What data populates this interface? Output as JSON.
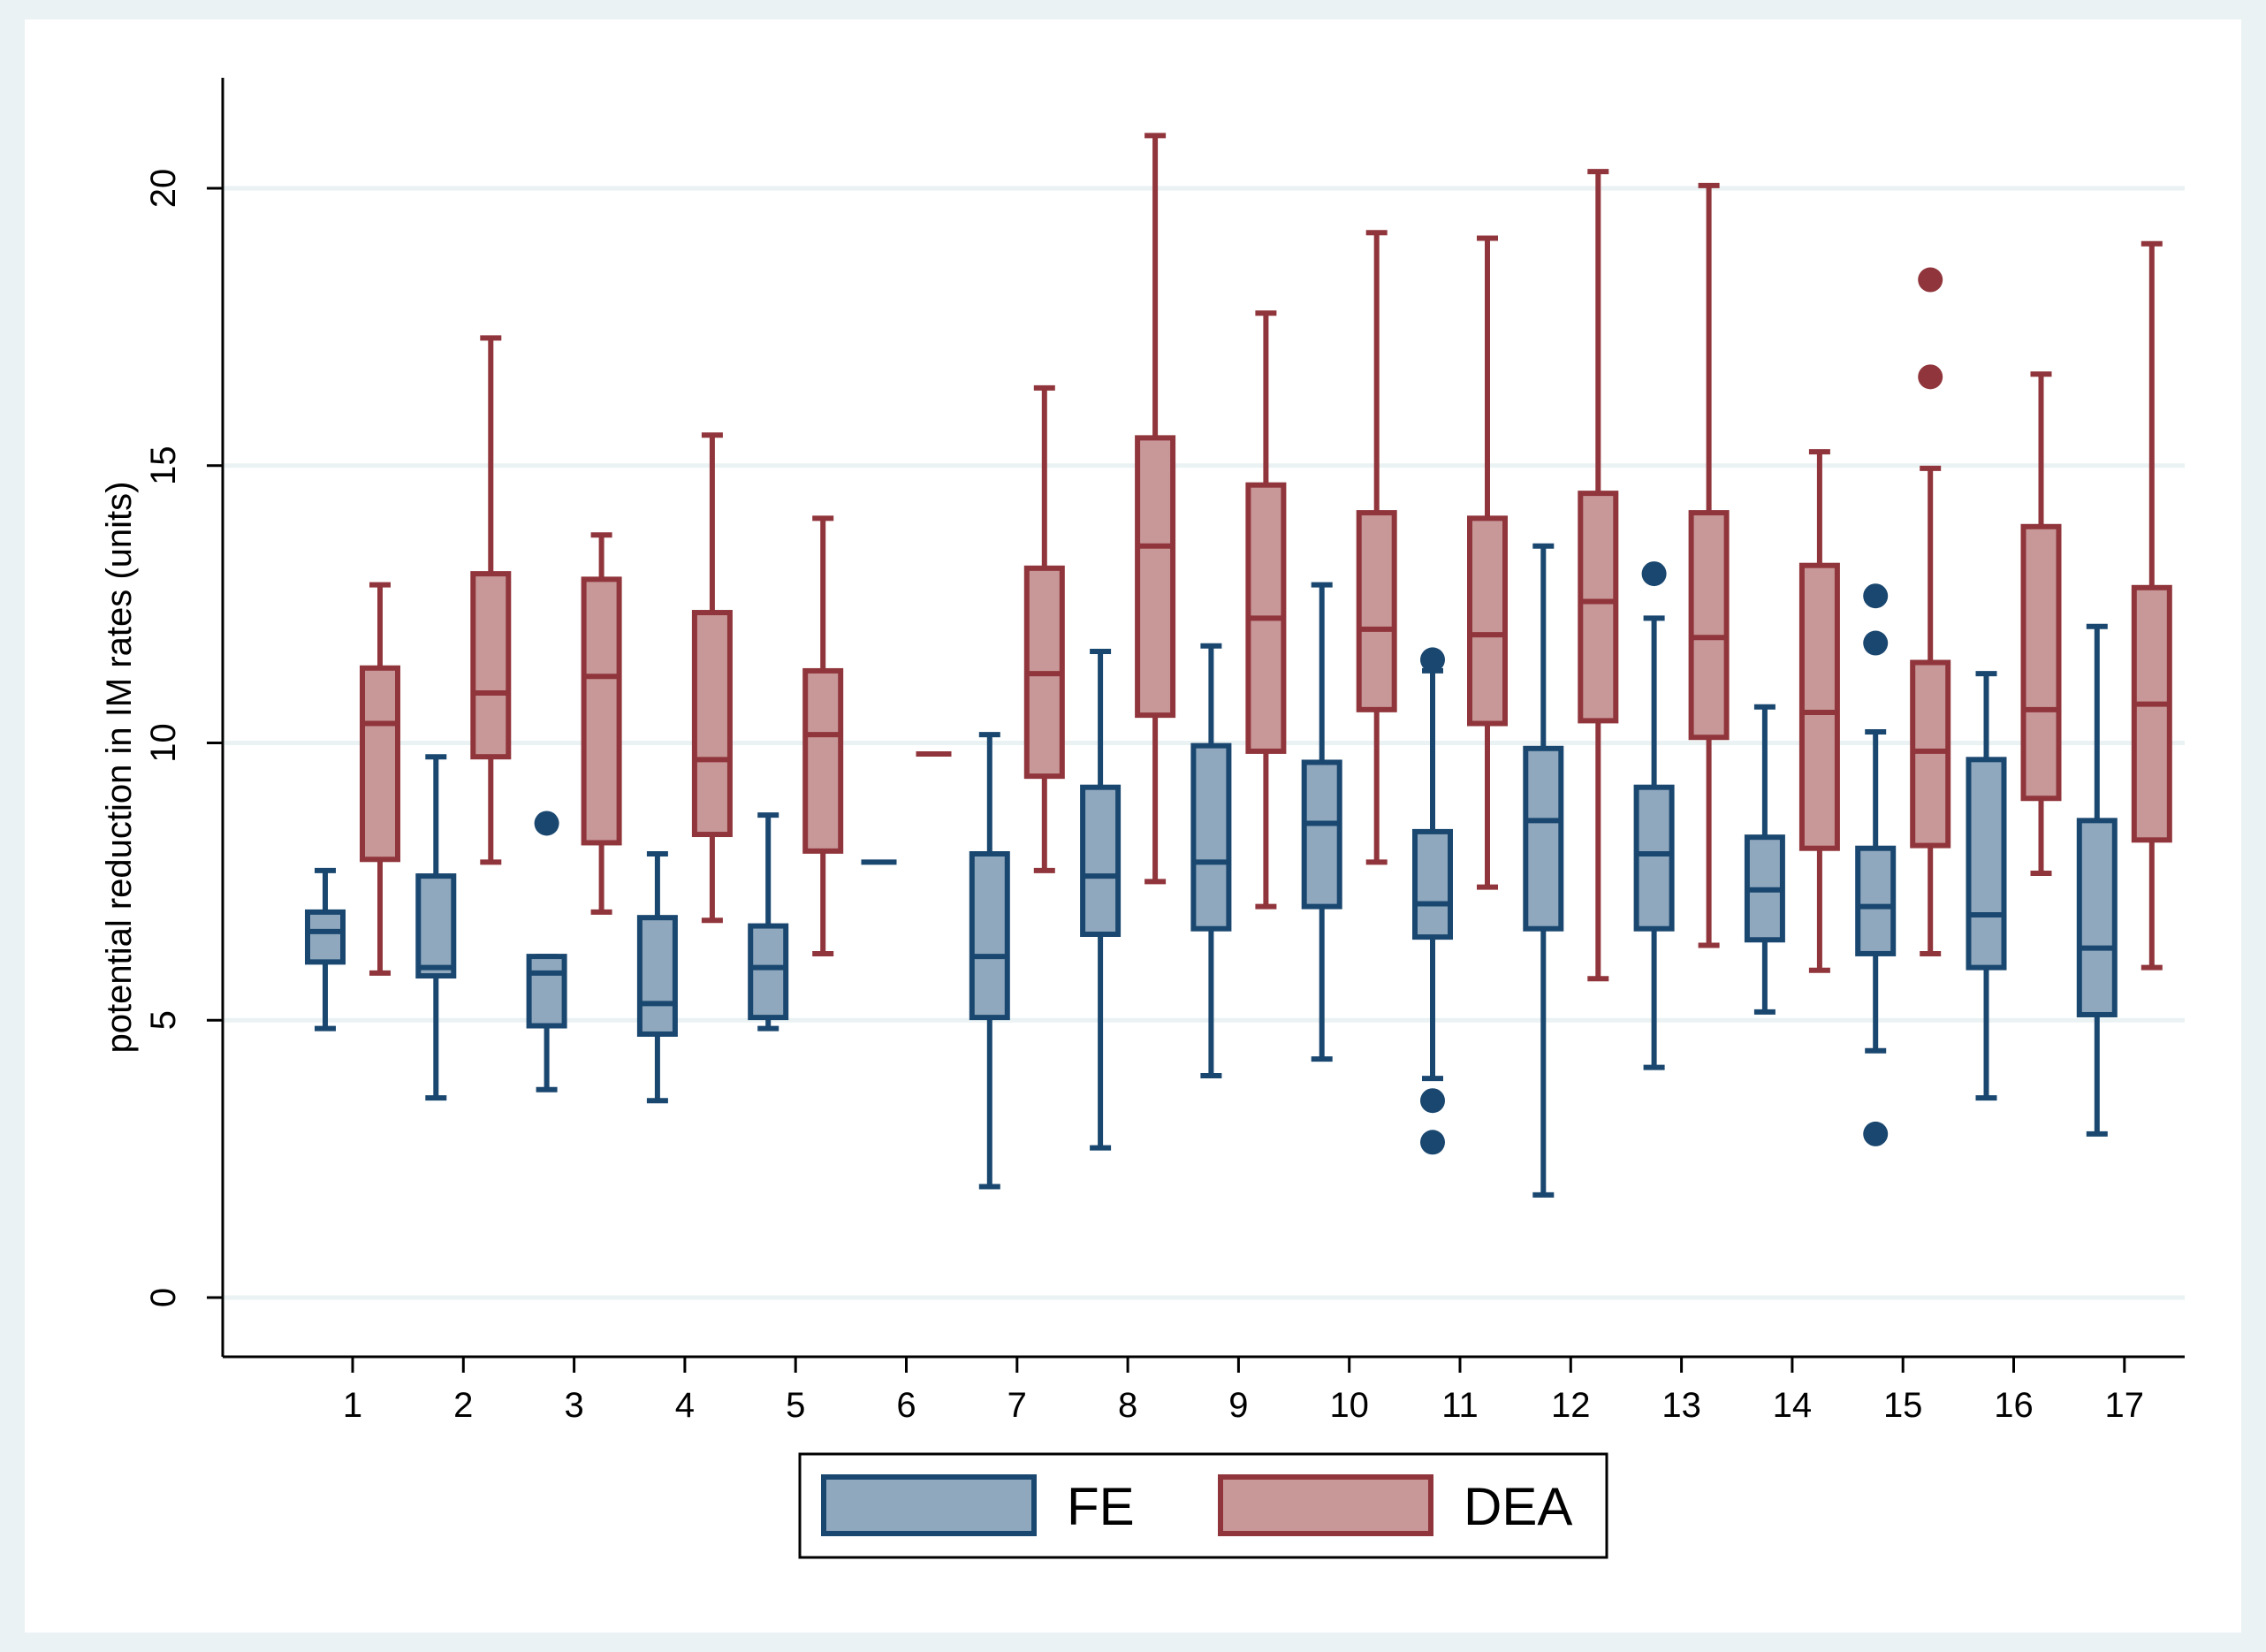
{
  "chart_data": {
    "type": "boxplot",
    "title": "",
    "xlabel": "",
    "ylabel": "potential reduction in IM rates (units)",
    "ylim": [
      -1,
      22
    ],
    "yticks": [
      0,
      5,
      10,
      15,
      20
    ],
    "grid": true,
    "legend_position": "bottom",
    "categories": [
      "1",
      "2",
      "3",
      "4",
      "5",
      "6",
      "7",
      "8",
      "9",
      "10",
      "11",
      "12",
      "13",
      "14",
      "15",
      "16",
      "17"
    ],
    "series": [
      {
        "name": "FE",
        "fill": "#90a8be",
        "stroke": "#1a476f",
        "boxes": [
          {
            "lo": 4.85,
            "q1": 6.05,
            "med": 6.6,
            "q3": 6.95,
            "hi": 7.7,
            "outliers": []
          },
          {
            "lo": 3.6,
            "q1": 5.8,
            "med": 5.95,
            "q3": 7.6,
            "hi": 9.75,
            "outliers": []
          },
          {
            "lo": 3.75,
            "q1": 4.9,
            "med": 5.85,
            "q3": 6.15,
            "hi": 6.15,
            "outliers": [
              8.55
            ]
          },
          {
            "lo": 3.55,
            "q1": 4.75,
            "med": 5.3,
            "q3": 6.85,
            "hi": 8.0,
            "outliers": []
          },
          {
            "lo": 4.85,
            "q1": 5.05,
            "med": 5.95,
            "q3": 6.7,
            "hi": 8.7,
            "outliers": []
          },
          {
            "lo": 7.85,
            "q1": 7.85,
            "med": 7.85,
            "q3": 7.85,
            "hi": 7.85,
            "outliers": []
          },
          {
            "lo": 2.0,
            "q1": 5.05,
            "med": 6.15,
            "q3": 8.0,
            "hi": 10.15,
            "outliers": []
          },
          {
            "lo": 2.7,
            "q1": 6.55,
            "med": 7.6,
            "q3": 9.2,
            "hi": 11.65,
            "outliers": []
          },
          {
            "lo": 4.0,
            "q1": 6.65,
            "med": 7.85,
            "q3": 9.95,
            "hi": 11.75,
            "outliers": []
          },
          {
            "lo": 4.3,
            "q1": 7.05,
            "med": 8.55,
            "q3": 9.65,
            "hi": 12.85,
            "outliers": []
          },
          {
            "lo": 3.95,
            "q1": 6.5,
            "med": 7.1,
            "q3": 8.4,
            "hi": 11.3,
            "outliers": [
              3.55,
              2.8,
              11.5
            ]
          },
          {
            "lo": 1.85,
            "q1": 6.65,
            "med": 8.6,
            "q3": 9.9,
            "hi": 13.55,
            "outliers": []
          },
          {
            "lo": 4.15,
            "q1": 6.65,
            "med": 8.0,
            "q3": 9.2,
            "hi": 12.25,
            "outliers": [
              13.05
            ]
          },
          {
            "lo": 5.15,
            "q1": 6.45,
            "med": 7.35,
            "q3": 8.3,
            "hi": 10.65,
            "outliers": []
          },
          {
            "lo": 4.45,
            "q1": 6.2,
            "med": 7.05,
            "q3": 8.1,
            "hi": 10.2,
            "outliers": [
              2.95,
              11.8,
              12.65
            ]
          },
          {
            "lo": 3.6,
            "q1": 5.95,
            "med": 6.9,
            "q3": 9.7,
            "hi": 11.25,
            "outliers": []
          },
          {
            "lo": 2.95,
            "q1": 5.1,
            "med": 6.3,
            "q3": 8.6,
            "hi": 12.1,
            "outliers": []
          }
        ]
      },
      {
        "name": "DEA",
        "fill": "#c89899",
        "stroke": "#90353b",
        "boxes": [
          {
            "lo": 5.85,
            "q1": 7.9,
            "med": 10.35,
            "q3": 11.35,
            "hi": 12.85,
            "outliers": []
          },
          {
            "lo": 7.85,
            "q1": 9.75,
            "med": 10.9,
            "q3": 13.05,
            "hi": 17.3,
            "outliers": []
          },
          {
            "lo": 6.95,
            "q1": 8.2,
            "med": 11.2,
            "q3": 12.95,
            "hi": 13.75,
            "outliers": []
          },
          {
            "lo": 6.8,
            "q1": 8.35,
            "med": 9.7,
            "q3": 12.35,
            "hi": 15.55,
            "outliers": []
          },
          {
            "lo": 6.2,
            "q1": 8.05,
            "med": 10.15,
            "q3": 11.3,
            "hi": 14.05,
            "outliers": []
          },
          {
            "lo": 9.8,
            "q1": 9.8,
            "med": 9.8,
            "q3": 9.8,
            "hi": 9.8,
            "outliers": []
          },
          {
            "lo": 7.7,
            "q1": 9.4,
            "med": 11.25,
            "q3": 13.15,
            "hi": 16.4,
            "outliers": []
          },
          {
            "lo": 7.5,
            "q1": 10.5,
            "med": 13.55,
            "q3": 15.5,
            "hi": 20.95,
            "outliers": []
          },
          {
            "lo": 7.05,
            "q1": 9.85,
            "med": 12.25,
            "q3": 14.65,
            "hi": 17.75,
            "outliers": []
          },
          {
            "lo": 7.85,
            "q1": 10.6,
            "med": 12.05,
            "q3": 14.15,
            "hi": 19.2,
            "outliers": []
          },
          {
            "lo": 7.4,
            "q1": 10.35,
            "med": 11.95,
            "q3": 14.05,
            "hi": 19.1,
            "outliers": []
          },
          {
            "lo": 5.75,
            "q1": 10.4,
            "med": 12.55,
            "q3": 14.5,
            "hi": 20.3,
            "outliers": []
          },
          {
            "lo": 6.35,
            "q1": 10.1,
            "med": 11.9,
            "q3": 14.15,
            "hi": 20.05,
            "outliers": []
          },
          {
            "lo": 5.9,
            "q1": 8.1,
            "med": 10.55,
            "q3": 13.2,
            "hi": 15.25,
            "outliers": []
          },
          {
            "lo": 6.2,
            "q1": 8.15,
            "med": 9.85,
            "q3": 11.45,
            "hi": 14.95,
            "outliers": [
              16.6,
              18.35
            ]
          },
          {
            "lo": 7.65,
            "q1": 9.0,
            "med": 10.6,
            "q3": 13.9,
            "hi": 16.65,
            "outliers": []
          },
          {
            "lo": 5.95,
            "q1": 8.25,
            "med": 10.7,
            "q3": 12.8,
            "hi": 19.0,
            "outliers": []
          }
        ]
      }
    ],
    "legend": [
      "FE",
      "DEA"
    ]
  },
  "colors": {
    "outer_background": "#eaf2f3",
    "plot_background": "#ffffff",
    "grid": "#eaf2f3"
  }
}
